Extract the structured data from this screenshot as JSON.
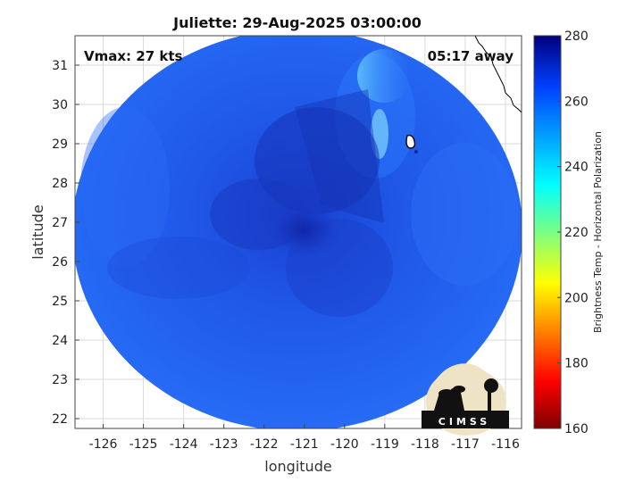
{
  "chart_data": {
    "type": "heatmap",
    "title": "Juliette: 29-Aug-2025 03:00:00",
    "xlabel": "longitude",
    "ylabel": "latitude",
    "x_ticks": [
      -126,
      -125,
      -124,
      -123,
      -122,
      -121,
      -120,
      -119,
      -118,
      -117,
      -116
    ],
    "y_ticks": [
      22,
      23,
      24,
      25,
      26,
      27,
      28,
      29,
      30,
      31
    ],
    "xlim": [
      -126.7,
      -115.6
    ],
    "ylim": [
      21.75,
      31.75
    ],
    "grid": true,
    "annotations": {
      "top_left": "Vmax: 27 kts",
      "top_right": "05:17 away"
    },
    "swath": {
      "center_lon": -121,
      "center_lat": 26.8,
      "cold_core": {
        "lon": -121,
        "lat": 26.8,
        "value": 266
      }
    },
    "colorbar": {
      "label": "Brightness Temp - Horizontal Polarization",
      "min": 160,
      "max": 280,
      "ticks": [
        160,
        180,
        200,
        220,
        240,
        260,
        280
      ],
      "colormap": "jet",
      "location": "right"
    },
    "logo": "CIMSS"
  },
  "colors": {
    "swath_base": "#1f5cf0",
    "swath_dark": "#1236c4",
    "swath_light": "#3a8cff",
    "coast": "#000000",
    "grid": "#d9d9d9"
  }
}
